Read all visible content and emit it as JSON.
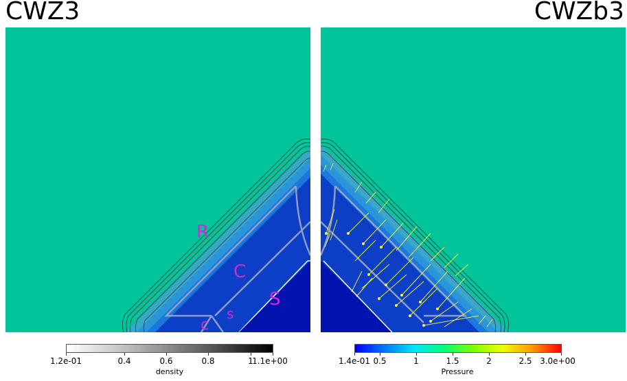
{
  "titles": {
    "left": "CWZ3",
    "right": "CWZb3"
  },
  "colors": {
    "background_field": "#00c49a",
    "deep_blue": "#0b2fc4",
    "annotation": "#d22ad2",
    "vector": "#f5f53a",
    "contour": "#2a2a2a"
  },
  "annotations": {
    "R": "R",
    "C": "C",
    "S": "S",
    "s": "s",
    "c": "c"
  },
  "colorbars": {
    "density": {
      "title": "density",
      "min_label": "1.2e-01",
      "max_label": "1.1e+00",
      "ticks": [
        "0.4",
        "0.6",
        "0.8",
        "1"
      ]
    },
    "pressure": {
      "title": "Pressure",
      "min_label": "1.4e-01",
      "max_label": "3.0e+00",
      "ticks": [
        "0.5",
        "1",
        "1.5",
        "2",
        "2.5"
      ]
    }
  }
}
